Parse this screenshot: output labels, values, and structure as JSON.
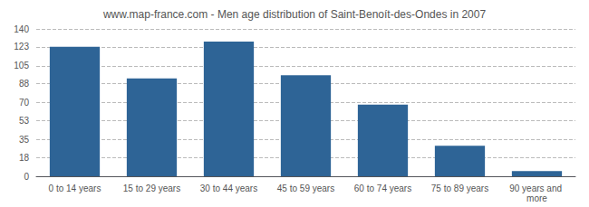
{
  "chart_data": {
    "type": "bar",
    "title": "www.map-france.com - Men age distribution of Saint-Benoít-des-Ondes in 2007",
    "categories": [
      "0 to 14 years",
      "15 to 29 years",
      "30 to 44 years",
      "45 to 59 years",
      "60 to 74 years",
      "75 to 89 years",
      "90 years and more"
    ],
    "values": [
      123,
      93,
      128,
      96,
      68,
      29,
      5
    ],
    "color": "#2e6496",
    "ylim": [
      0,
      140
    ],
    "yticks": [
      0,
      18,
      35,
      53,
      70,
      88,
      105,
      123,
      140
    ],
    "grid": true
  }
}
